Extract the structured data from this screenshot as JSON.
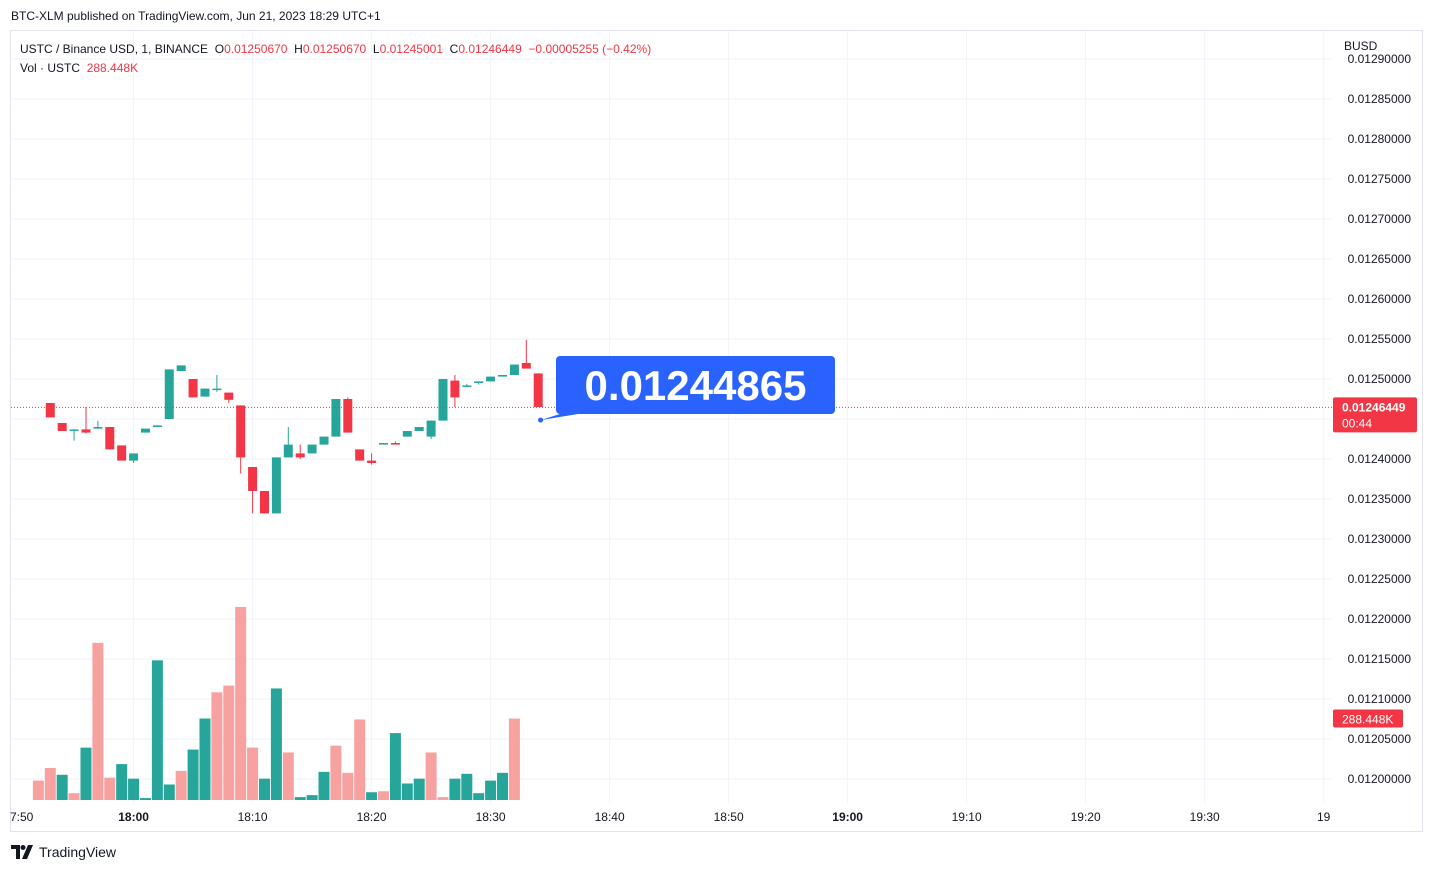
{
  "header": {
    "published_line": "BTC-XLM published on TradingView.com, Jun 21, 2023 18:29 UTC+1"
  },
  "legend": {
    "symbol": "USTC / Binance USD, 1, BINANCE",
    "o_label": "O",
    "o_value": "0.01250670",
    "h_label": "H",
    "h_value": "0.01250670",
    "l_label": "L",
    "l_value": "0.01245001",
    "c_label": "C",
    "c_value": "0.01246449",
    "change": "−0.00005255 (−0.42%)",
    "vol_label": "Vol · USTC",
    "vol_value": "288.448K"
  },
  "footer": {
    "brand": "TradingView"
  },
  "colors": {
    "up": "#26a69a",
    "down": "#f23645",
    "vol_up": "#26a69a",
    "vol_down": "#f7a1a1",
    "callout": "#2962ff",
    "grid": "#f0f3fa"
  },
  "chart_data": {
    "type": "candlestick",
    "currency": "BUSD",
    "y_ticks": [
      "0.01290000",
      "0.01285000",
      "0.01280000",
      "0.01275000",
      "0.01270000",
      "0.01265000",
      "0.01260000",
      "0.01255000",
      "0.01250000",
      "0.01245000",
      "0.01240000",
      "0.01235000",
      "0.01230000",
      "0.01225000",
      "0.01220000",
      "0.01215000",
      "0.01210000",
      "0.01205000",
      "0.01200000"
    ],
    "x_ticks": [
      {
        "t": -10.3,
        "label": "7:50",
        "bold": false
      },
      {
        "t": 0,
        "label": "18:00",
        "bold": true
      },
      {
        "t": 10,
        "label": "18:10",
        "bold": false
      },
      {
        "t": 20,
        "label": "18:20",
        "bold": false
      },
      {
        "t": 30,
        "label": "18:30",
        "bold": false
      },
      {
        "t": 40,
        "label": "18:40",
        "bold": false
      },
      {
        "t": 50,
        "label": "18:50",
        "bold": false
      },
      {
        "t": 60,
        "label": "19:00",
        "bold": true
      },
      {
        "t": 70,
        "label": "19:10",
        "bold": false
      },
      {
        "t": 80,
        "label": "19:20",
        "bold": false
      },
      {
        "t": 90,
        "label": "19:30",
        "bold": false
      },
      {
        "t": 100,
        "label": "19",
        "bold": false
      }
    ],
    "y_range": [
      0.01197,
      0.012935
    ],
    "x_minute_range": [
      -10.3,
      100.7
    ],
    "candles": [
      {
        "t": -7,
        "o": 0.01247,
        "h": 0.01247,
        "l": 0.012452,
        "c": 0.012452
      },
      {
        "t": -6,
        "o": 0.012445,
        "h": 0.012445,
        "l": 0.012435,
        "c": 0.012435
      },
      {
        "t": -5,
        "o": 0.012437,
        "h": 0.012437,
        "l": 0.012423,
        "c": 0.012437
      },
      {
        "t": -4,
        "o": 0.012437,
        "h": 0.012465,
        "l": 0.012432,
        "c": 0.012433
      },
      {
        "t": -3,
        "o": 0.012438,
        "h": 0.012448,
        "l": 0.012438,
        "c": 0.01244
      },
      {
        "t": -2,
        "o": 0.01244,
        "h": 0.01244,
        "l": 0.012412,
        "c": 0.012412
      },
      {
        "t": -1,
        "o": 0.012417,
        "h": 0.012417,
        "l": 0.012398,
        "c": 0.012398
      },
      {
        "t": 0,
        "o": 0.012398,
        "h": 0.012407,
        "l": 0.012395,
        "c": 0.012407
      },
      {
        "t": 1,
        "o": 0.012433,
        "h": 0.012438,
        "l": 0.012433,
        "c": 0.012438
      },
      {
        "t": 2,
        "o": 0.01244,
        "h": 0.012442,
        "l": 0.01244,
        "c": 0.012442
      },
      {
        "t": 3,
        "o": 0.01245,
        "h": 0.012512,
        "l": 0.01245,
        "c": 0.012512
      },
      {
        "t": 4,
        "o": 0.01251,
        "h": 0.012517,
        "l": 0.01251,
        "c": 0.012517
      },
      {
        "t": 5,
        "o": 0.0125,
        "h": 0.0125,
        "l": 0.012477,
        "c": 0.012477
      },
      {
        "t": 6,
        "o": 0.012478,
        "h": 0.012488,
        "l": 0.012478,
        "c": 0.012488
      },
      {
        "t": 7,
        "o": 0.012488,
        "h": 0.012505,
        "l": 0.012484,
        "c": 0.012488
      },
      {
        "t": 8,
        "o": 0.012483,
        "h": 0.012483,
        "l": 0.01247,
        "c": 0.012474
      },
      {
        "t": 9,
        "o": 0.012467,
        "h": 0.012467,
        "l": 0.012382,
        "c": 0.012402
      },
      {
        "t": 10,
        "o": 0.01239,
        "h": 0.01239,
        "l": 0.012332,
        "c": 0.01236
      },
      {
        "t": 11,
        "o": 0.01236,
        "h": 0.01236,
        "l": 0.012332,
        "c": 0.012332
      },
      {
        "t": 12,
        "o": 0.012332,
        "h": 0.012402,
        "l": 0.012332,
        "c": 0.012402
      },
      {
        "t": 13,
        "o": 0.012402,
        "h": 0.01244,
        "l": 0.012402,
        "c": 0.012418
      },
      {
        "t": 14,
        "o": 0.012407,
        "h": 0.012418,
        "l": 0.0124,
        "c": 0.012402
      },
      {
        "t": 15,
        "o": 0.012407,
        "h": 0.012418,
        "l": 0.012407,
        "c": 0.012418
      },
      {
        "t": 16,
        "o": 0.012418,
        "h": 0.012428,
        "l": 0.012418,
        "c": 0.012428
      },
      {
        "t": 17,
        "o": 0.012428,
        "h": 0.012475,
        "l": 0.012428,
        "c": 0.012475
      },
      {
        "t": 18,
        "o": 0.012475,
        "h": 0.012477,
        "l": 0.012433,
        "c": 0.012433
      },
      {
        "t": 19,
        "o": 0.012412,
        "h": 0.012412,
        "l": 0.012398,
        "c": 0.012398
      },
      {
        "t": 20,
        "o": 0.012398,
        "h": 0.012407,
        "l": 0.012393,
        "c": 0.012395
      },
      {
        "t": 21,
        "o": 0.012418,
        "h": 0.01242,
        "l": 0.012418,
        "c": 0.01242
      },
      {
        "t": 22,
        "o": 0.01242,
        "h": 0.012422,
        "l": 0.012418,
        "c": 0.012418
      },
      {
        "t": 23,
        "o": 0.012428,
        "h": 0.012435,
        "l": 0.012428,
        "c": 0.012435
      },
      {
        "t": 24,
        "o": 0.012435,
        "h": 0.01244,
        "l": 0.012435,
        "c": 0.01244
      },
      {
        "t": 25,
        "o": 0.012428,
        "h": 0.012448,
        "l": 0.012425,
        "c": 0.012448
      },
      {
        "t": 26,
        "o": 0.012448,
        "h": 0.0125,
        "l": 0.012448,
        "c": 0.0125
      },
      {
        "t": 27,
        "o": 0.012498,
        "h": 0.012505,
        "l": 0.012465,
        "c": 0.012477
      },
      {
        "t": 28,
        "o": 0.012492,
        "h": 0.012494,
        "l": 0.01249,
        "c": 0.012492
      },
      {
        "t": 29,
        "o": 0.012495,
        "h": 0.012497,
        "l": 0.012493,
        "c": 0.012497
      },
      {
        "t": 30,
        "o": 0.012497,
        "h": 0.012503,
        "l": 0.012497,
        "c": 0.012503
      },
      {
        "t": 31,
        "o": 0.012503,
        "h": 0.012505,
        "l": 0.012503,
        "c": 0.012505
      },
      {
        "t": 32,
        "o": 0.012505,
        "h": 0.012518,
        "l": 0.012505,
        "c": 0.012518
      },
      {
        "t": 33,
        "o": 0.01252,
        "h": 0.012549,
        "l": 0.012513,
        "c": 0.012513
      },
      {
        "t": 34,
        "o": 0.012507,
        "h": 0.012507,
        "l": 0.012465,
        "c": 0.012465
      }
    ],
    "volume": [
      {
        "t": -8,
        "v": 20,
        "up": false
      },
      {
        "t": -7,
        "v": 33,
        "up": false
      },
      {
        "t": -6,
        "v": 26,
        "up": true
      },
      {
        "t": -5,
        "v": 7,
        "up": false
      },
      {
        "t": -4,
        "v": 54,
        "up": true
      },
      {
        "t": -3,
        "v": 162,
        "up": false
      },
      {
        "t": -2,
        "v": 23,
        "up": false
      },
      {
        "t": -1,
        "v": 37,
        "up": true
      },
      {
        "t": 0,
        "v": 22,
        "up": true
      },
      {
        "t": 1,
        "v": 2,
        "up": true
      },
      {
        "t": 2,
        "v": 144,
        "up": true
      },
      {
        "t": 3,
        "v": 16,
        "up": true
      },
      {
        "t": 4,
        "v": 30,
        "up": false
      },
      {
        "t": 5,
        "v": 52,
        "up": true
      },
      {
        "t": 6,
        "v": 84,
        "up": true
      },
      {
        "t": 7,
        "v": 111,
        "up": false
      },
      {
        "t": 8,
        "v": 118,
        "up": false
      },
      {
        "t": 9,
        "v": 199,
        "up": false
      },
      {
        "t": 10,
        "v": 54,
        "up": false
      },
      {
        "t": 11,
        "v": 22,
        "up": true
      },
      {
        "t": 12,
        "v": 115,
        "up": true
      },
      {
        "t": 13,
        "v": 49,
        "up": false
      },
      {
        "t": 14,
        "v": 3,
        "up": true
      },
      {
        "t": 15,
        "v": 5,
        "up": true
      },
      {
        "t": 16,
        "v": 29,
        "up": true
      },
      {
        "t": 17,
        "v": 56,
        "up": false
      },
      {
        "t": 18,
        "v": 28,
        "up": false
      },
      {
        "t": 19,
        "v": 83,
        "up": false
      },
      {
        "t": 20,
        "v": 8,
        "up": true
      },
      {
        "t": 21,
        "v": 9,
        "up": false
      },
      {
        "t": 22,
        "v": 69,
        "up": true
      },
      {
        "t": 23,
        "v": 17,
        "up": true
      },
      {
        "t": 24,
        "v": 22,
        "up": true
      },
      {
        "t": 25,
        "v": 49,
        "up": false
      },
      {
        "t": 26,
        "v": 3,
        "up": false
      },
      {
        "t": 27,
        "v": 22,
        "up": true
      },
      {
        "t": 28,
        "v": 27,
        "up": true
      },
      {
        "t": 29,
        "v": 7,
        "up": true
      },
      {
        "t": 30,
        "v": 20,
        "up": true
      },
      {
        "t": 31,
        "v": 28,
        "up": true
      },
      {
        "t": 32,
        "v": 84,
        "up": false
      }
    ],
    "last_price": 0.01246449,
    "last_price_label": "0.01246449",
    "countdown": "00:44",
    "volume_label": "288.448K",
    "callout": {
      "t": 34.2,
      "price": 0.01244865,
      "label": "0.01244865"
    }
  }
}
